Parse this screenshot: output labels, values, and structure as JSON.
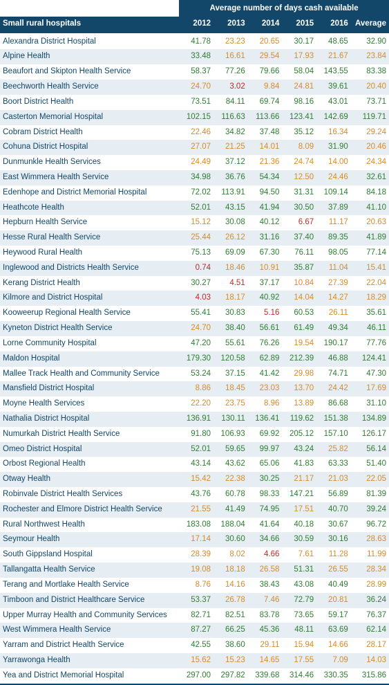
{
  "title_row_label": "Small rural hospitals",
  "spanning_header": "Average number of days cash available",
  "year_cols": [
    "2012",
    "2013",
    "2014",
    "2015",
    "2016",
    "Average"
  ],
  "colors": {
    "header_bg": "#124769",
    "header_text": "#ffffff",
    "row_even_bg": "#e6eef3",
    "row_odd_bg": "#ffffff",
    "name_text": "#124769",
    "green": "#2f7d32",
    "orange": "#d78b2a",
    "red": "#c02828"
  },
  "thresholds": {
    "red_lt": 7.0,
    "orange_lt": 30.0
  },
  "rows": [
    {
      "name": "Alexandra District Hospital",
      "v": [
        41.78,
        23.23,
        20.65,
        30.17,
        48.65,
        32.9
      ]
    },
    {
      "name": "Alpine Health",
      "v": [
        33.48,
        16.61,
        29.54,
        17.93,
        21.67,
        23.84
      ]
    },
    {
      "name": "Beaufort and Skipton Health Service",
      "v": [
        58.37,
        77.26,
        79.66,
        58.04,
        143.55,
        83.38
      ]
    },
    {
      "name": "Beechworth Health Service",
      "v": [
        24.7,
        3.02,
        9.84,
        24.81,
        39.61,
        20.4
      ]
    },
    {
      "name": "Boort District Health",
      "v": [
        73.51,
        84.11,
        69.74,
        98.16,
        43.01,
        73.71
      ]
    },
    {
      "name": "Casterton Memorial Hospital",
      "v": [
        102.15,
        116.63,
        113.66,
        123.41,
        142.69,
        119.71
      ]
    },
    {
      "name": "Cobram District Health",
      "v": [
        22.46,
        34.82,
        37.48,
        35.12,
        16.34,
        29.24
      ]
    },
    {
      "name": "Cohuna District Hospital",
      "v": [
        27.07,
        21.25,
        14.01,
        8.09,
        31.9,
        20.46
      ]
    },
    {
      "name": "Dunmunkle Health Services",
      "v": [
        24.49,
        37.12,
        21.36,
        24.74,
        14.0,
        24.34
      ]
    },
    {
      "name": "East Wimmera Health Service",
      "v": [
        34.98,
        36.76,
        54.34,
        12.5,
        24.46,
        32.61
      ]
    },
    {
      "name": "Edenhope and District Memorial Hospital",
      "v": [
        72.02,
        113.91,
        94.5,
        31.31,
        109.14,
        84.18
      ]
    },
    {
      "name": "Heathcote Health",
      "v": [
        52.01,
        43.15,
        41.94,
        30.5,
        37.89,
        41.1
      ]
    },
    {
      "name": "Hepburn Health Service",
      "v": [
        15.12,
        30.08,
        40.12,
        6.67,
        11.17,
        20.63
      ]
    },
    {
      "name": "Hesse Rural Health Service",
      "v": [
        25.44,
        26.12,
        31.16,
        37.4,
        89.35,
        41.89
      ]
    },
    {
      "name": "Heywood Rural Health",
      "v": [
        75.13,
        69.09,
        67.3,
        76.11,
        98.05,
        77.14
      ]
    },
    {
      "name": "Inglewood and Districts Health Service",
      "v": [
        0.74,
        18.46,
        10.91,
        35.87,
        11.04,
        15.41
      ]
    },
    {
      "name": "Kerang District Health",
      "v": [
        30.27,
        4.51,
        37.17,
        10.84,
        27.39,
        22.04
      ]
    },
    {
      "name": "Kilmore and District Hospital",
      "v": [
        4.03,
        18.17,
        40.92,
        14.04,
        14.27,
        18.29
      ]
    },
    {
      "name": "Kooweerup Regional Health Service",
      "v": [
        55.41,
        30.83,
        5.16,
        60.53,
        26.11,
        35.61
      ]
    },
    {
      "name": "Kyneton District Health Service",
      "v": [
        24.7,
        38.4,
        56.61,
        61.49,
        49.34,
        46.11
      ]
    },
    {
      "name": "Lorne Community Hospital",
      "v": [
        47.2,
        55.61,
        76.26,
        19.54,
        190.17,
        77.76
      ]
    },
    {
      "name": "Maldon Hospital",
      "v": [
        179.3,
        120.58,
        62.89,
        212.39,
        46.88,
        124.41
      ]
    },
    {
      "name": "Mallee Track Health and Community Service",
      "v": [
        53.24,
        37.15,
        41.42,
        29.98,
        74.71,
        47.3
      ]
    },
    {
      "name": "Mansfield District Hospital",
      "v": [
        8.86,
        18.45,
        23.03,
        13.7,
        24.42,
        17.69
      ]
    },
    {
      "name": "Moyne Health Services",
      "v": [
        22.2,
        23.75,
        8.96,
        13.89,
        86.68,
        31.1
      ]
    },
    {
      "name": "Nathalia District Hospital",
      "v": [
        136.91,
        130.11,
        136.41,
        119.62,
        151.38,
        134.89
      ]
    },
    {
      "name": "Numurkah District Health Service",
      "v": [
        91.8,
        106.93,
        69.92,
        205.12,
        157.1,
        126.17
      ]
    },
    {
      "name": "Omeo District Hospital",
      "v": [
        52.01,
        59.65,
        99.97,
        43.24,
        25.82,
        56.14
      ]
    },
    {
      "name": "Orbost Regional Health",
      "v": [
        43.14,
        43.62,
        65.06,
        41.83,
        63.33,
        51.4
      ]
    },
    {
      "name": "Otway Health",
      "v": [
        15.42,
        22.38,
        30.25,
        21.17,
        21.03,
        22.05
      ]
    },
    {
      "name": "Robinvale District Health Services",
      "v": [
        43.76,
        60.78,
        98.33,
        147.21,
        56.89,
        81.39
      ]
    },
    {
      "name": "Rochester and Elmore District Health Service",
      "v": [
        21.55,
        41.49,
        74.95,
        17.51,
        40.7,
        39.24
      ]
    },
    {
      "name": "Rural Northwest Health",
      "v": [
        183.08,
        188.04,
        41.64,
        40.18,
        30.67,
        96.72
      ]
    },
    {
      "name": "Seymour Health",
      "v": [
        17.14,
        30.6,
        34.66,
        30.59,
        30.16,
        28.63
      ]
    },
    {
      "name": "South Gippsland Hospital",
      "v": [
        28.39,
        8.02,
        4.66,
        7.61,
        11.28,
        11.99
      ]
    },
    {
      "name": "Tallangatta Health Service",
      "v": [
        19.08,
        18.18,
        26.58,
        51.31,
        26.55,
        28.34
      ]
    },
    {
      "name": "Terang and Mortlake Health Service",
      "v": [
        8.76,
        14.16,
        38.43,
        43.08,
        40.49,
        28.99
      ]
    },
    {
      "name": "Timboon and District Healthcare Service",
      "v": [
        53.37,
        26.78,
        7.46,
        72.79,
        20.81,
        36.24
      ]
    },
    {
      "name": "Upper Murray Health and Community Services",
      "v": [
        82.71,
        82.51,
        83.78,
        73.65,
        59.17,
        76.37
      ]
    },
    {
      "name": "West Wimmera Health Service",
      "v": [
        87.27,
        66.25,
        45.36,
        48.11,
        63.69,
        62.14
      ]
    },
    {
      "name": "Yarram and District Health Service",
      "v": [
        42.55,
        38.6,
        29.11,
        15.94,
        14.66,
        28.17
      ]
    },
    {
      "name": "Yarrawonga Health",
      "v": [
        15.62,
        15.23,
        14.65,
        17.55,
        7.09,
        14.03
      ]
    },
    {
      "name": "Yea and District Memorial Hospital",
      "v": [
        297.0,
        297.82,
        339.68,
        314.46,
        330.35,
        315.86
      ]
    }
  ]
}
